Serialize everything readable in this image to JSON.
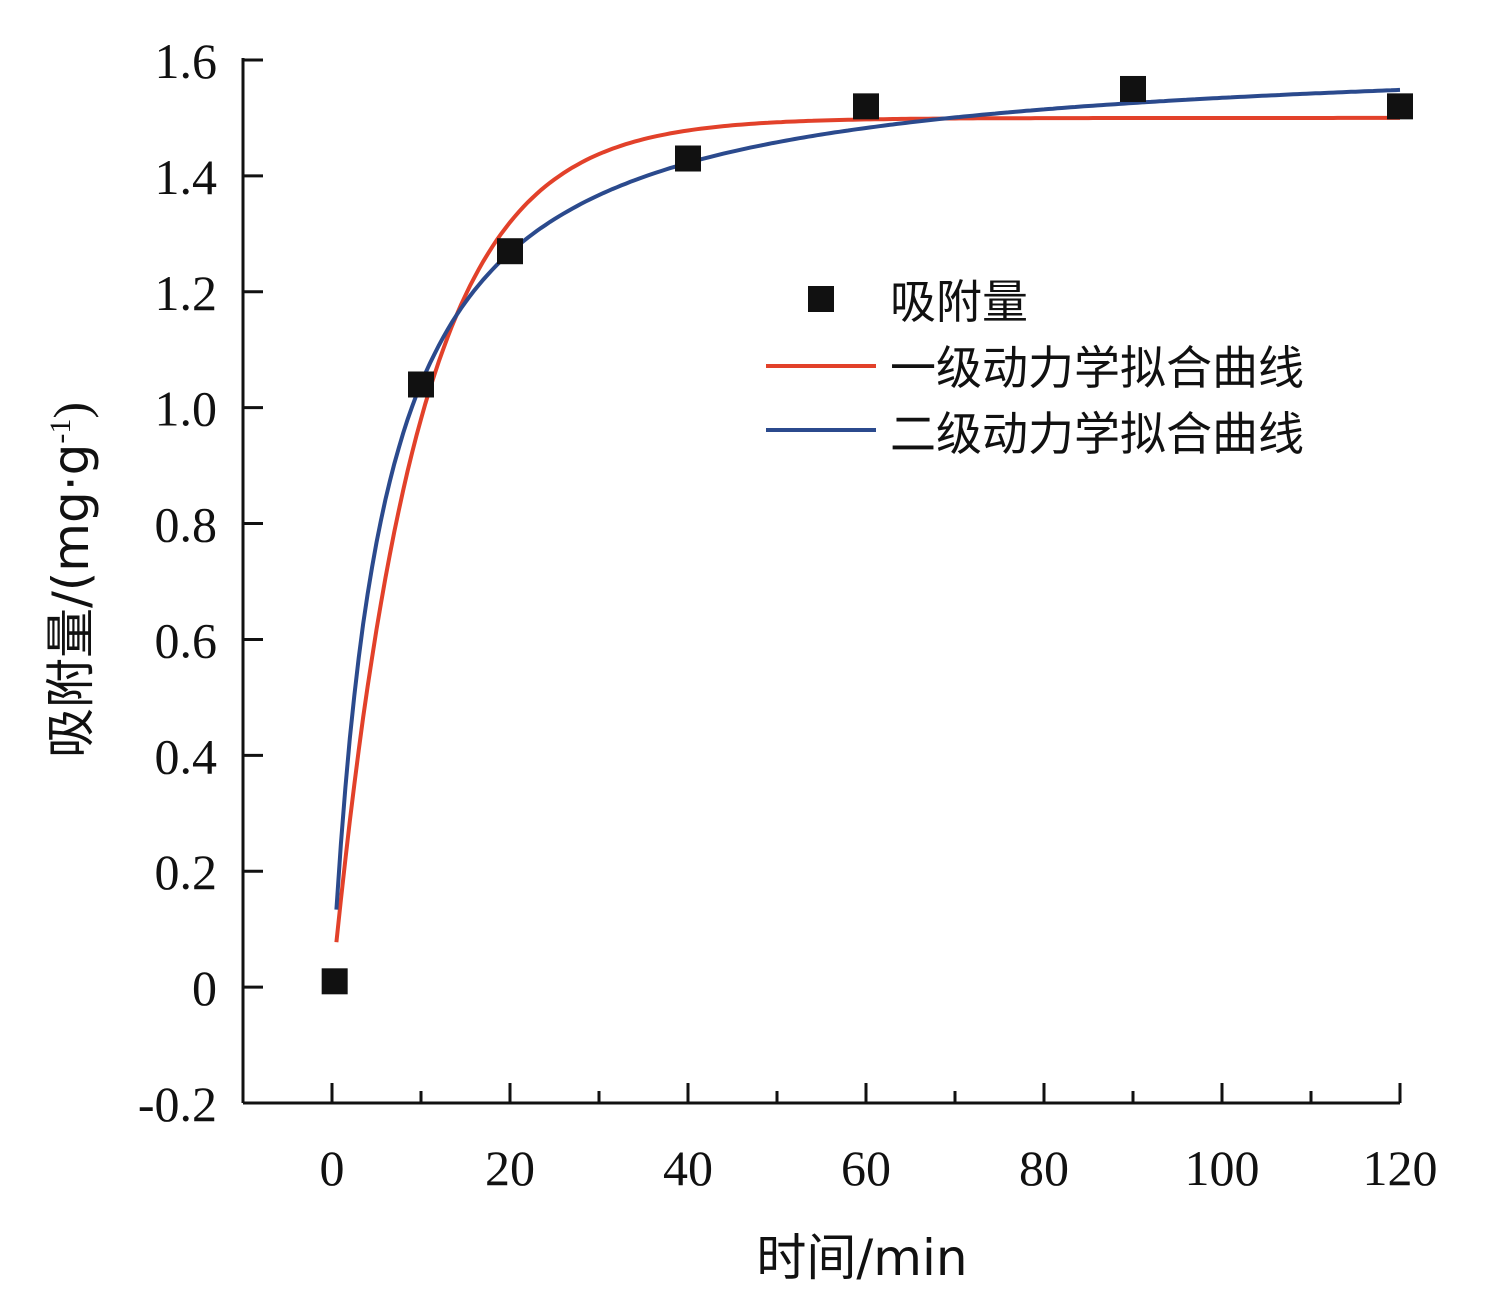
{
  "chart_data": {
    "type": "scatter",
    "title": "",
    "xlabel": "时间/min",
    "ylabel": "吸附量/(mg·g",
    "ylabel_sup": "-1",
    "ylabel_close": ")",
    "xlim": [
      -10,
      120
    ],
    "ylim": [
      -0.2,
      1.6
    ],
    "xticks": [
      0,
      20,
      40,
      60,
      80,
      100,
      120
    ],
    "xtick_labels": [
      "0",
      "20",
      "40",
      "60",
      "80",
      "100",
      "120"
    ],
    "yticks": [
      -0.2,
      0,
      0.2,
      0.4,
      0.6,
      0.8,
      1.0,
      1.2,
      1.4,
      1.6
    ],
    "ytick_labels": [
      "-0.2",
      "0",
      "0.2",
      "0.4",
      "0.6",
      "0.8",
      "1.0",
      "1.2",
      "1.4",
      "1.6"
    ],
    "grid": false,
    "legend_position": "center-right",
    "series": [
      {
        "name": "吸附量",
        "kind": "scatter",
        "color": "#111111",
        "x": [
          0.3,
          10,
          20,
          40,
          60,
          90,
          120
        ],
        "y": [
          0.01,
          1.04,
          1.27,
          1.43,
          1.52,
          1.55,
          1.52
        ]
      },
      {
        "name": "一级动力学拟合曲线",
        "kind": "line",
        "color": "#e2412a",
        "model": "pseudo-first-order",
        "qe": 1.5,
        "k": 0.106
      },
      {
        "name": "二级动力学拟合曲线",
        "kind": "line",
        "color": "#2b4a8d",
        "model": "pseudo-second-order",
        "qe": 1.62,
        "h": 0.18
      }
    ]
  }
}
